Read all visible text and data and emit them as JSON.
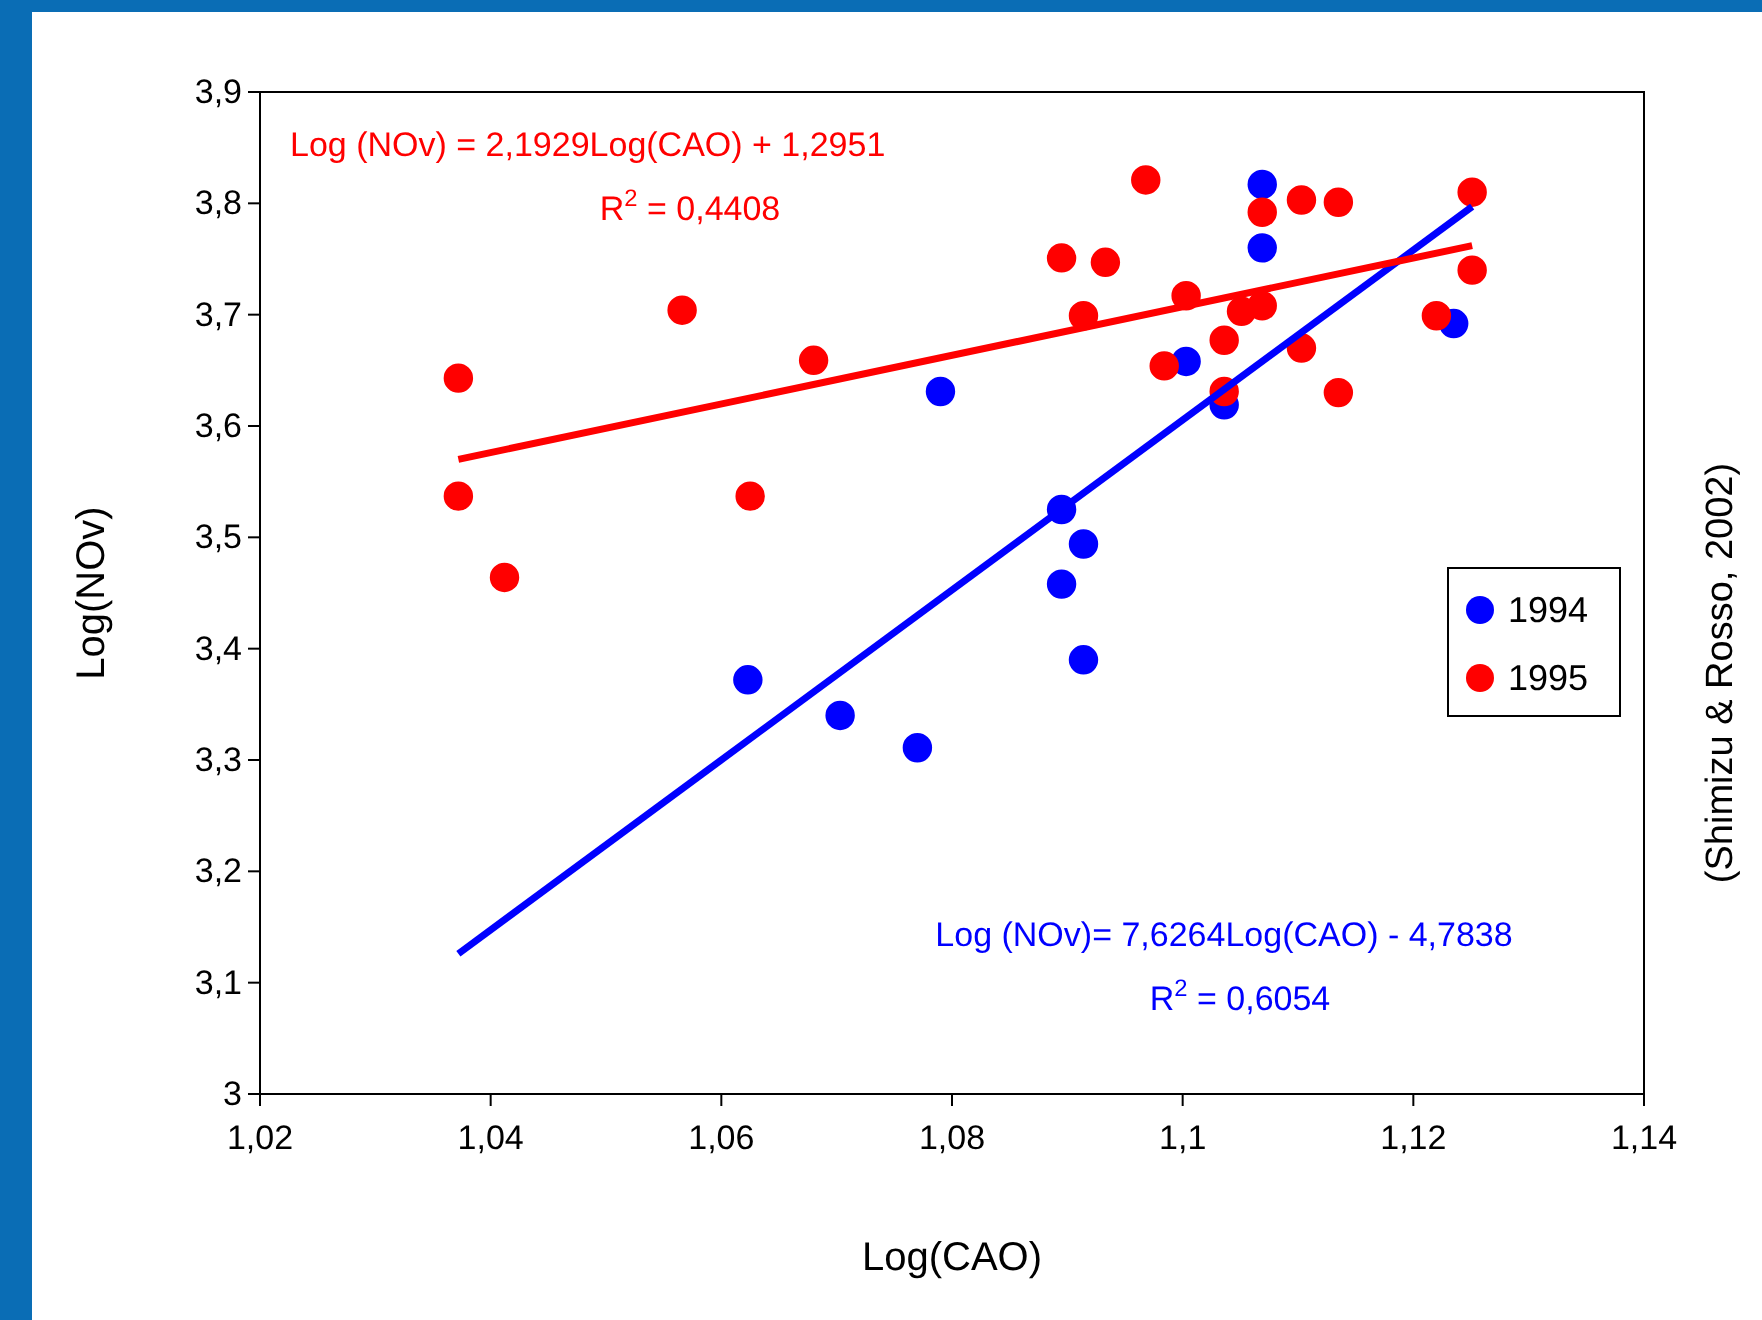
{
  "chart_data": {
    "type": "scatter",
    "xlabel": "Log(CAO)",
    "ylabel": "Log(NOv)",
    "xlim": [
      1.02,
      1.14
    ],
    "xticks": [
      {
        "value": 1.02,
        "label": "1,02"
      },
      {
        "value": 1.04,
        "label": "1,04"
      },
      {
        "value": 1.06,
        "label": "1,06"
      },
      {
        "value": 1.08,
        "label": "1,08"
      },
      {
        "value": 1.1,
        "label": "1,1"
      },
      {
        "value": 1.12,
        "label": "1,12"
      },
      {
        "value": 1.14,
        "label": "1,14"
      }
    ],
    "ylim": [
      3,
      3.9
    ],
    "yticks": [
      3,
      {
        "value": 3.1,
        "label": "3,1"
      },
      {
        "value": 3.2,
        "label": "3,2"
      },
      {
        "value": 3.3,
        "label": "3,3"
      },
      {
        "value": 3.4,
        "label": "3,4"
      },
      {
        "value": 3.5,
        "label": "3,5"
      },
      {
        "value": 3.6,
        "label": "3,6"
      },
      {
        "value": 3.7,
        "label": "3,7"
      },
      {
        "value": 3.8,
        "label": "3,8"
      },
      {
        "value": 3.9,
        "label": "3,9"
      }
    ],
    "grid": false,
    "legend": "right",
    "marker": "circle",
    "series": [
      {
        "name": "1994",
        "color": "#0000ff",
        "x": [
          1.0623,
          1.0703,
          1.077,
          1.079,
          1.0895,
          1.0895,
          1.0914,
          1.0914,
          1.1003,
          1.1036,
          1.1069,
          1.1069,
          1.1235
        ],
        "values": [
          3.372,
          3.34,
          3.311,
          3.631,
          3.525,
          3.458,
          3.494,
          3.39,
          3.658,
          3.619,
          3.817,
          3.76,
          3.692
        ]
      },
      {
        "name": "1995",
        "color": "#ff0000",
        "x": [
          1.0372,
          1.0372,
          1.0412,
          1.0566,
          1.0625,
          1.068,
          1.0895,
          1.0933,
          1.0914,
          1.0968,
          1.0984,
          1.1003,
          1.1036,
          1.1036,
          1.1051,
          1.1069,
          1.1069,
          1.1103,
          1.1103,
          1.1135,
          1.1135,
          1.122,
          1.1251,
          1.1251
        ],
        "values": [
          3.643,
          3.537,
          3.464,
          3.704,
          3.537,
          3.659,
          3.751,
          3.747,
          3.699,
          3.821,
          3.654,
          3.717,
          3.677,
          3.631,
          3.703,
          3.708,
          3.792,
          3.803,
          3.67,
          3.801,
          3.63,
          3.699,
          3.81,
          3.74
        ]
      },
      {
        "type": "line",
        "color": "#0000ff",
        "marker": "none",
        "x": [
          1.0372,
          1.1251
        ],
        "values": [
          3.126,
          3.797
        ]
      },
      {
        "type": "line",
        "color": "#ff0000",
        "marker": "none",
        "x": [
          1.0372,
          1.1251
        ],
        "values": [
          3.57,
          3.762
        ]
      }
    ],
    "annotations": [
      "Log (NOv) = 2,1929Log(CAO) + 1,2951",
      "R$^{2}$ = 0,4408",
      "Log (NOv)= 7,6264Log(CAO) - 4,7838",
      "R$^{2}$ = 0,6054",
      "(Shimizu & Rosso, 2002)"
    ]
  }
}
